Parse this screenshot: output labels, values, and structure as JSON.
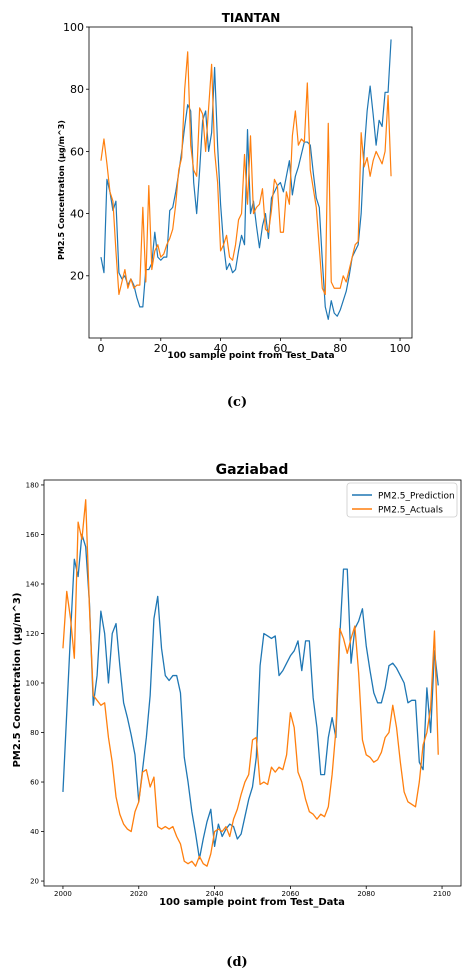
{
  "colors": {
    "prediction": "#1f77b4",
    "actuals": "#ff7f0e"
  },
  "captions": {
    "c": "(c)",
    "d": "(d)"
  },
  "chart_data": [
    {
      "type": "line",
      "title": "TIANTAN",
      "xlabel": "100 sample point from Test_Data",
      "ylabel": "PM2.5 Concentration (µg/m^3)",
      "xlim": [
        -4,
        104
      ],
      "ylim": [
        0,
        100
      ],
      "xticks": [
        0,
        20,
        40,
        60,
        80,
        100
      ],
      "yticks": [
        20,
        40,
        60,
        80,
        100
      ],
      "grid": false,
      "series": [
        {
          "values": [
            26,
            21,
            51,
            47,
            41,
            44,
            21,
            19,
            20,
            17,
            19,
            17,
            13,
            10,
            10,
            22,
            22,
            24,
            34,
            26,
            25,
            26,
            26,
            41,
            42,
            47,
            53,
            60,
            68,
            75,
            73,
            50,
            40,
            54,
            70,
            73,
            60,
            66,
            87,
            62,
            43,
            30,
            22,
            24,
            21,
            22,
            28,
            33,
            30,
            67,
            40,
            44,
            36,
            29,
            36,
            40,
            32,
            45,
            47,
            49,
            50,
            47,
            52,
            57,
            46,
            52,
            55,
            59,
            63,
            63,
            62,
            53,
            45,
            42,
            25,
            10,
            6,
            12,
            8,
            7,
            9,
            12,
            15,
            20,
            26,
            28,
            30,
            40,
            60,
            73,
            81,
            72,
            62,
            70,
            68,
            79,
            79,
            96
          ]
        },
        {
          "values": [
            57,
            64,
            56,
            47,
            44,
            28,
            14,
            18,
            22,
            16,
            19,
            16,
            17,
            17,
            42,
            18,
            49,
            22,
            28,
            30,
            26,
            27,
            30,
            32,
            35,
            43,
            54,
            58,
            80,
            92,
            62,
            54,
            52,
            74,
            72,
            60,
            74,
            88,
            60,
            50,
            28,
            30,
            33,
            26,
            25,
            30,
            38,
            40,
            59,
            43,
            65,
            40,
            42,
            43,
            48,
            35,
            34,
            41,
            51,
            49,
            34,
            34,
            47,
            43,
            65,
            73,
            62,
            64,
            63,
            82,
            54,
            48,
            42,
            29,
            16,
            14,
            69,
            18,
            16,
            16,
            16,
            20,
            18,
            22,
            26,
            30,
            31,
            66,
            55,
            58,
            52,
            57,
            60,
            58,
            56,
            60,
            78,
            52
          ]
        }
      ]
    },
    {
      "type": "line",
      "title": "Gaziabad",
      "xlabel": "100 sample point from Test_Data",
      "ylabel": "PM2.5 Concentration (µg/m^3)",
      "xlim": [
        1995,
        2105
      ],
      "ylim": [
        18,
        182
      ],
      "xticks": [
        2000,
        2020,
        2040,
        2060,
        2080,
        2100
      ],
      "yticks": [
        20,
        40,
        60,
        80,
        100,
        120,
        140,
        160,
        180
      ],
      "grid": false,
      "legend": "top-right",
      "series": [
        {
          "name": "PM2.5_Prediction",
          "x_start": 2000,
          "values": [
            56,
            88,
            120,
            150,
            143,
            160,
            155,
            132,
            91,
            103,
            129,
            120,
            100,
            120,
            124,
            107,
            92,
            86,
            79,
            71,
            52,
            65,
            78,
            95,
            126,
            135,
            114,
            103,
            101,
            103,
            103,
            96,
            70,
            60,
            48,
            39,
            29,
            37,
            44,
            49,
            34,
            43,
            38,
            41,
            43,
            42,
            37,
            39,
            46,
            53,
            58,
            70,
            107,
            120,
            119,
            118,
            119,
            103,
            105,
            108,
            111,
            113,
            117,
            105,
            117,
            117,
            94,
            82,
            63,
            63,
            78,
            86,
            78,
            118,
            146,
            146,
            108,
            122,
            125,
            130,
            115,
            105,
            96,
            92,
            92,
            98,
            107,
            108,
            106,
            103,
            100,
            92,
            93,
            93,
            68,
            65,
            98,
            80,
            113,
            99
          ]
        },
        {
          "name": "PM2.5_Actuals",
          "x_start": 2000,
          "values": [
            114,
            137,
            126,
            110,
            165,
            158,
            174,
            130,
            95,
            93,
            91,
            92,
            78,
            68,
            54,
            47,
            43,
            41,
            40,
            48,
            52,
            64,
            65,
            58,
            62,
            42,
            41,
            42,
            41,
            42,
            38,
            35,
            28,
            27,
            28,
            26,
            30,
            27,
            26,
            31,
            40,
            41,
            40,
            42,
            38,
            45,
            49,
            55,
            60,
            63,
            77,
            78,
            59,
            60,
            59,
            66,
            64,
            66,
            65,
            71,
            88,
            82,
            64,
            60,
            53,
            48,
            47,
            45,
            47,
            46,
            50,
            63,
            81,
            122,
            118,
            112,
            118,
            123,
            104,
            77,
            71,
            70,
            68,
            69,
            72,
            78,
            80,
            91,
            82,
            68,
            56,
            52,
            51,
            50,
            60,
            75,
            80,
            90,
            121,
            71
          ]
        }
      ]
    }
  ]
}
